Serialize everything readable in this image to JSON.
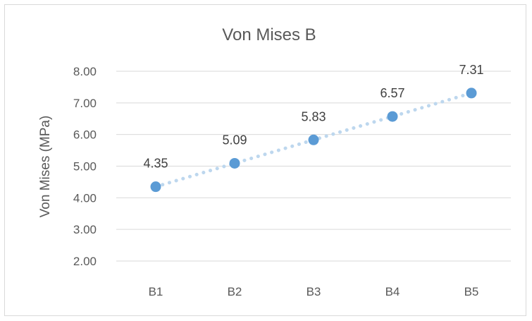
{
  "chart_data": {
    "type": "scatter",
    "title": "Von Mises B",
    "xlabel": "",
    "ylabel": "Von Mises (MPa)",
    "categories": [
      "B1",
      "B2",
      "B3",
      "B4",
      "B5"
    ],
    "series": [
      {
        "values": [
          4.35,
          5.09,
          5.83,
          6.57,
          7.31
        ],
        "color": "#5b9bd5"
      }
    ],
    "data_labels": [
      "4.35",
      "5.09",
      "5.83",
      "6.57",
      "7.31"
    ],
    "yticks": [
      "2.00",
      "3.00",
      "4.00",
      "5.00",
      "6.00",
      "7.00",
      "8.00"
    ],
    "ylim": [
      2,
      8
    ],
    "grid": true,
    "legend": "none",
    "trendline": {
      "type": "linear",
      "style": "dotted",
      "color": "#bdd7ee"
    }
  }
}
